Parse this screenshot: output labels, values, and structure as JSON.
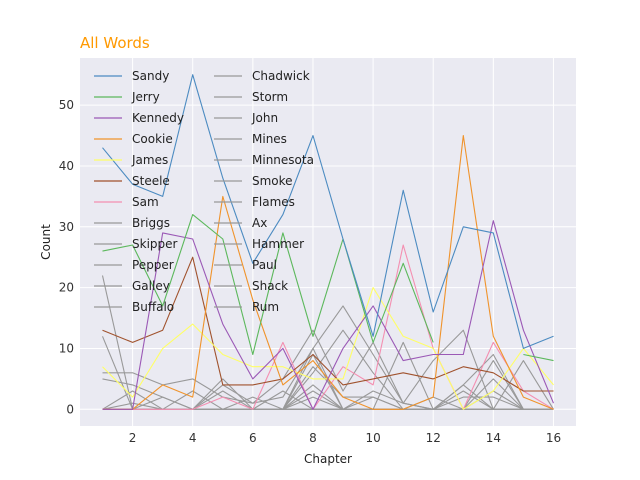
{
  "chart_data": {
    "type": "line",
    "title": "All Words",
    "title_color": "#ff9900",
    "xlabel": "Chapter",
    "ylabel": "Count",
    "x": [
      1,
      2,
      3,
      4,
      5,
      6,
      7,
      8,
      9,
      10,
      11,
      12,
      13,
      14,
      15,
      16
    ],
    "xlim": [
      0.25,
      16.75
    ],
    "ylim": [
      -2.75,
      57.75
    ],
    "xticks": [
      2,
      4,
      6,
      8,
      10,
      12,
      14,
      16
    ],
    "yticks": [
      0,
      10,
      20,
      30,
      40,
      50
    ],
    "grid": true,
    "plot_background": "#eaeaf2",
    "legend_position": "top-left",
    "series": [
      {
        "name": "Sandy",
        "color": "#4c8bc1",
        "values": [
          43,
          37,
          35,
          55,
          38,
          24,
          32,
          45,
          28,
          12,
          36,
          16,
          30,
          29,
          10,
          12
        ]
      },
      {
        "name": "Jerry",
        "color": "#5cb85c",
        "values": [
          26,
          27,
          17,
          32,
          28,
          9,
          29,
          12,
          28,
          11,
          24,
          11,
          null,
          null,
          9,
          8
        ]
      },
      {
        "name": "Kennedy",
        "color": "#9b59b6",
        "values": [
          0,
          0,
          29,
          28,
          14,
          5,
          10,
          0,
          10,
          17,
          8,
          9,
          9,
          31,
          13,
          1
        ]
      },
      {
        "name": "Cookie",
        "color": "#f0932b",
        "values": [
          0,
          0,
          4,
          2,
          35,
          18,
          4,
          8,
          2,
          0,
          0,
          2,
          45,
          12,
          2,
          0
        ]
      },
      {
        "name": "James",
        "color": "#ffff66",
        "values": [
          7,
          2,
          10,
          14,
          9,
          7,
          7,
          5,
          5,
          20,
          12,
          10,
          0,
          3,
          10,
          4
        ]
      },
      {
        "name": "Steele",
        "color": "#a0522d",
        "values": [
          13,
          11,
          13,
          25,
          4,
          4,
          5,
          9,
          4,
          5,
          6,
          5,
          7,
          6,
          3,
          3
        ]
      },
      {
        "name": "Sam",
        "color": "#f48fb1",
        "values": [
          0,
          0,
          0,
          0,
          2,
          0,
          11,
          0,
          7,
          4,
          27,
          10,
          0,
          11,
          3,
          0
        ]
      },
      {
        "name": "Briggs",
        "color": "#999999",
        "values": [
          22,
          0,
          0,
          0,
          0,
          0,
          0,
          0,
          0,
          0,
          0,
          0,
          0,
          0,
          0,
          0
        ]
      },
      {
        "name": "Skipper",
        "color": "#999999",
        "values": [
          12,
          0,
          0,
          0,
          0,
          0,
          0,
          10,
          0,
          0,
          0,
          0,
          0,
          0,
          0,
          0
        ]
      },
      {
        "name": "Pepper",
        "color": "#999999",
        "values": [
          6,
          6,
          4,
          5,
          2,
          1,
          2,
          10,
          17,
          9,
          1,
          8,
          13,
          0,
          0,
          0
        ]
      },
      {
        "name": "Galley",
        "color": "#999999",
        "values": [
          5,
          4,
          2,
          0,
          4,
          1,
          5,
          13,
          3,
          11,
          1,
          0,
          4,
          9,
          0,
          0
        ]
      },
      {
        "name": "Buffalo",
        "color": "#999999",
        "values": [
          0,
          0,
          0,
          0,
          0,
          0,
          0,
          6,
          13,
          6,
          0,
          0,
          0,
          0,
          0,
          0
        ]
      },
      {
        "name": "Chadwick",
        "color": "#999999",
        "values": [
          0,
          0,
          0,
          0,
          0,
          0,
          0,
          0,
          0,
          0,
          11,
          0,
          0,
          0,
          0,
          0
        ]
      },
      {
        "name": "Storm",
        "color": "#999999",
        "values": [
          0,
          0,
          2,
          0,
          3,
          0,
          0,
          9,
          0,
          2,
          0,
          0,
          0,
          3,
          0,
          0
        ]
      },
      {
        "name": "John",
        "color": "#999999",
        "values": [
          0,
          3,
          0,
          0,
          5,
          0,
          0,
          7,
          2,
          2,
          0,
          0,
          2,
          2,
          0,
          0
        ]
      },
      {
        "name": "Mines",
        "color": "#999999",
        "values": [
          0,
          0,
          0,
          0,
          0,
          0,
          0,
          4,
          0,
          3,
          1,
          0,
          4,
          0,
          0,
          0
        ]
      },
      {
        "name": "Minnesota",
        "color": "#999999",
        "values": [
          0,
          0,
          0,
          0,
          0,
          0,
          0,
          0,
          0,
          0,
          0,
          0,
          0,
          8,
          0,
          0
        ]
      },
      {
        "name": "Smoke",
        "color": "#999999",
        "values": [
          0,
          0,
          0,
          0,
          0,
          0,
          3,
          0,
          0,
          0,
          0,
          2,
          0,
          0,
          0,
          0
        ]
      },
      {
        "name": "Flames",
        "color": "#999999",
        "values": [
          0,
          0,
          0,
          0,
          0,
          0,
          0,
          2,
          0,
          0,
          0,
          0,
          0,
          5,
          0,
          0
        ]
      },
      {
        "name": "Ax",
        "color": "#999999",
        "values": [
          0,
          0,
          0,
          3,
          0,
          0,
          0,
          0,
          0,
          0,
          0,
          0,
          0,
          0,
          0,
          0
        ]
      },
      {
        "name": "Hammer",
        "color": "#999999",
        "values": [
          0,
          0,
          0,
          0,
          0,
          2,
          0,
          0,
          0,
          0,
          0,
          0,
          0,
          0,
          0,
          0
        ]
      },
      {
        "name": "Paul",
        "color": "#999999",
        "values": [
          0,
          1,
          0,
          0,
          0,
          0,
          0,
          0,
          0,
          0,
          0,
          0,
          3,
          0,
          0,
          0
        ]
      },
      {
        "name": "Shack",
        "color": "#999999",
        "values": [
          0,
          0,
          0,
          0,
          0,
          0,
          0,
          0,
          0,
          0,
          0,
          0,
          0,
          0,
          8,
          0
        ]
      },
      {
        "name": "Rum",
        "color": "#999999",
        "values": [
          0,
          0,
          0,
          0,
          0,
          0,
          0,
          3,
          0,
          0,
          0,
          0,
          0,
          0,
          0,
          0
        ]
      }
    ]
  }
}
